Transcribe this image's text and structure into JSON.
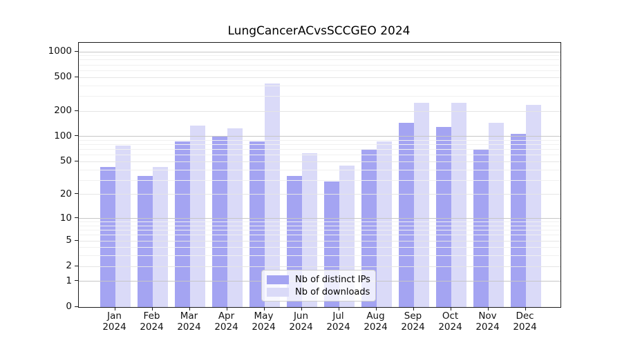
{
  "chart_data": {
    "type": "bar",
    "title": "LungCancerACvsSCCGEO 2024",
    "categories": [
      "Jan",
      "Feb",
      "Mar",
      "Apr",
      "May",
      "Jun",
      "Jul",
      "Aug",
      "Sep",
      "Oct",
      "Nov",
      "Dec"
    ],
    "category_year": "2024",
    "series": [
      {
        "name": "Nb of distinct IPs",
        "color": "#a4a4f2",
        "values": [
          43,
          34,
          88,
          100,
          87,
          34,
          29,
          70,
          146,
          129,
          71,
          108
        ]
      },
      {
        "name": "Nb of downloads",
        "color": "#dadaf8",
        "values": [
          78,
          43,
          135,
          126,
          420,
          64,
          45,
          88,
          253,
          251,
          146,
          238
        ]
      }
    ],
    "yscale": "log1p",
    "yticks": [
      0,
      1,
      2,
      5,
      10,
      20,
      50,
      100,
      200,
      500,
      1000
    ],
    "ylim": [
      0,
      1260
    ],
    "grid": true,
    "legend_position": "lower center"
  }
}
